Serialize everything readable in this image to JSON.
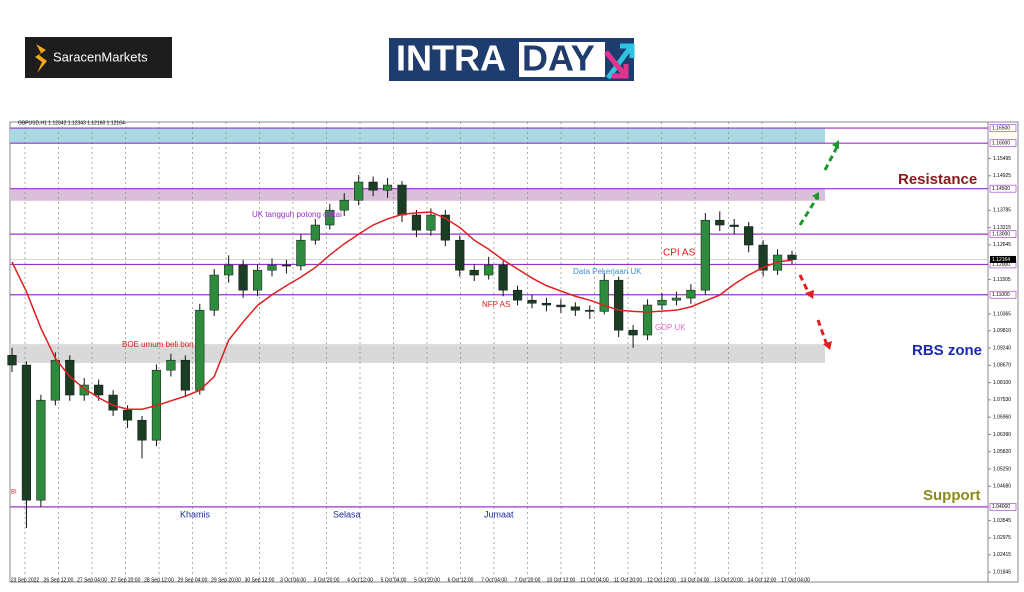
{
  "brand": "SaracenMarkets",
  "banner": {
    "left": "INTRA",
    "right": "DAY"
  },
  "chart_data": {
    "type": "candlestick",
    "title": "GBPUSD,H1 1.12342 1.12343 1.12160 1.12164",
    "ylim": [
      1.0152,
      1.167
    ],
    "yticks": [
      {
        "value": 1.15495,
        "label": "1.15495"
      },
      {
        "value": 1.14925,
        "label": "1.14925"
      },
      {
        "value": 1.13785,
        "label": "1.13785"
      },
      {
        "value": 1.13215,
        "label": "1.13215"
      },
      {
        "value": 1.12645,
        "label": "1.12645"
      },
      {
        "value": 1.11505,
        "label": "1.11505"
      },
      {
        "value": 1.10365,
        "label": "1.10365"
      },
      {
        "value": 1.0981,
        "label": "1.09810"
      },
      {
        "value": 1.0924,
        "label": "1.09240"
      },
      {
        "value": 1.0867,
        "label": "1.08670"
      },
      {
        "value": 1.081,
        "label": "1.08100"
      },
      {
        "value": 1.0753,
        "label": "1.07530"
      },
      {
        "value": 1.0696,
        "label": "1.06960"
      },
      {
        "value": 1.0639,
        "label": "1.06390"
      },
      {
        "value": 1.0582,
        "label": "1.05820"
      },
      {
        "value": 1.0525,
        "label": "1.05250"
      },
      {
        "value": 1.0468,
        "label": "1.04680"
      },
      {
        "value": 1.03545,
        "label": "1.03545"
      },
      {
        "value": 1.02975,
        "label": "1.02975"
      },
      {
        "value": 1.02415,
        "label": "1.02415"
      },
      {
        "value": 1.01845,
        "label": "1.01845"
      }
    ],
    "time_labels": [
      "23 Sep 2022",
      "26 Sep 12:00",
      "27 Sep 04:00",
      "27 Sep 20:00",
      "28 Sep 12:00",
      "29 Sep 04:00",
      "29 Sep 20:00",
      "30 Sep 12:00",
      "3 Oct 04:00",
      "3 Oct 20:00",
      "4 Oct 12:00",
      "5 Oct 04:00",
      "5 Oct 20:00",
      "6 Oct 12:00",
      "7 Oct 04:00",
      "7 Oct 20:00",
      "10 Oct 12:00",
      "11 Oct 04:00",
      "11 Oct 20:00",
      "12 Oct 12:00",
      "13 Oct 04:00",
      "13 Oct 20:00",
      "14 Oct 12:00",
      "17 Oct 04:00"
    ],
    "up_color": "#2e8b3e",
    "down_color": "#1b3d24",
    "ma_color": "#e02020",
    "level_color": "#9b30c8",
    "open": [
      1.09,
      1.0868,
      1.0422,
      1.0752,
      1.0884,
      1.0769,
      1.0802,
      1.0769,
      1.0719,
      1.0686,
      1.062,
      1.0851,
      1.0884,
      1.0785,
      1.1049,
      1.1165,
      1.1198,
      1.1115,
      1.1181,
      1.1198,
      1.1195,
      1.128,
      1.133,
      1.1379,
      1.1412,
      1.1472,
      1.1445,
      1.1462,
      1.1363,
      1.1313,
      1.1363,
      1.128,
      1.1181,
      1.1165,
      1.1198,
      1.1115,
      1.1082,
      1.1072,
      1.1066,
      1.106,
      1.1049,
      1.1045,
      1.1148,
      1.0983,
      1.0967,
      1.1066,
      1.1082,
      1.1089,
      1.1115,
      1.1346,
      1.133,
      1.1325,
      1.1264,
      1.1181,
      1.1231
    ],
    "high": [
      1.0925,
      1.088,
      1.077,
      1.091,
      1.09,
      1.0825,
      1.082,
      1.0785,
      1.0735,
      1.07,
      1.087,
      1.0905,
      1.09,
      1.107,
      1.1185,
      1.123,
      1.1215,
      1.12,
      1.122,
      1.1215,
      1.13,
      1.135,
      1.14,
      1.1435,
      1.1495,
      1.149,
      1.1485,
      1.1475,
      1.138,
      1.1385,
      1.138,
      1.1295,
      1.12,
      1.1225,
      1.1215,
      1.113,
      1.11,
      1.109,
      1.1085,
      1.1075,
      1.1065,
      1.117,
      1.116,
      1.1,
      1.1085,
      1.1105,
      1.111,
      1.1135,
      1.137,
      1.1375,
      1.135,
      1.134,
      1.128,
      1.125,
      1.1245
    ],
    "low": [
      1.0845,
      1.033,
      1.04,
      1.0735,
      1.075,
      1.075,
      1.075,
      1.07,
      1.066,
      1.056,
      1.06,
      1.083,
      1.0765,
      1.077,
      1.103,
      1.114,
      1.109,
      1.1095,
      1.116,
      1.117,
      1.118,
      1.1265,
      1.1315,
      1.136,
      1.1395,
      1.1425,
      1.142,
      1.134,
      1.129,
      1.1295,
      1.126,
      1.116,
      1.1145,
      1.115,
      1.1095,
      1.1065,
      1.1055,
      1.1045,
      1.104,
      1.103,
      1.102,
      1.1035,
      1.096,
      1.0925,
      1.095,
      1.105,
      1.1065,
      1.107,
      1.11,
      1.131,
      1.13,
      1.124,
      1.116,
      1.1165,
      1.12
    ],
    "close": [
      1.0868,
      1.0422,
      1.0752,
      1.0884,
      1.0769,
      1.0802,
      1.0769,
      1.0719,
      1.0686,
      1.062,
      1.0851,
      1.0884,
      1.0785,
      1.1049,
      1.1165,
      1.1198,
      1.1115,
      1.1181,
      1.1198,
      1.1195,
      1.128,
      1.133,
      1.1379,
      1.1412,
      1.1472,
      1.1445,
      1.1462,
      1.1363,
      1.1313,
      1.1363,
      1.128,
      1.1181,
      1.1165,
      1.1198,
      1.1115,
      1.1082,
      1.1072,
      1.1066,
      1.106,
      1.1049,
      1.1045,
      1.1148,
      1.0983,
      1.0967,
      1.1066,
      1.1082,
      1.1089,
      1.1115,
      1.1346,
      1.133,
      1.1325,
      1.1264,
      1.1181,
      1.1231,
      1.1216
    ],
    "ma": [
      1.1208,
      1.111,
      1.099,
      1.089,
      1.083,
      1.079,
      1.076,
      1.0735,
      1.0722,
      1.0722,
      1.0734,
      1.075,
      1.0765,
      1.0785,
      1.083,
      1.095,
      1.101,
      1.1065,
      1.11,
      1.113,
      1.1158,
      1.119,
      1.1231,
      1.1268,
      1.13,
      1.133,
      1.135,
      1.1365,
      1.137,
      1.1373,
      1.1352,
      1.1322,
      1.128,
      1.125,
      1.1215,
      1.1185,
      1.1155,
      1.113,
      1.1112,
      1.1095,
      1.1082,
      1.1065,
      1.1049,
      1.1045,
      1.1043,
      1.1046,
      1.1049,
      1.106,
      1.108,
      1.1099,
      1.1135,
      1.1165,
      1.119,
      1.1208,
      1.1214
    ],
    "levels": [
      {
        "value": 1.165,
        "label": "1.16500"
      },
      {
        "value": 1.16,
        "label": "1.16000"
      },
      {
        "value": 1.145,
        "label": "1.14500"
      },
      {
        "value": 1.13,
        "label": "1.13000"
      },
      {
        "value": 1.12,
        "label": "1.12000"
      },
      {
        "value": 1.11,
        "label": "1.11000"
      },
      {
        "value": 1.04,
        "label": "1.04000"
      }
    ],
    "current": {
      "value": 1.12164,
      "label": "1.12164"
    },
    "zones": [
      {
        "from": 1.16,
        "to": 1.165,
        "color": "#a9d9e3"
      },
      {
        "from": 1.141,
        "to": 1.145,
        "color": "#d9bfd9"
      },
      {
        "from": 1.0875,
        "to": 1.0937,
        "color": "#d9d9d9"
      }
    ],
    "annotations": [
      "UK tangguh potong cukai",
      "BOE umum beli bon",
      "NFP AS",
      "Data Pekerjaan UK",
      "CPI AS",
      "GDP UK",
      "Khamis",
      "Selasa",
      "Jumaat",
      "BI"
    ],
    "zone_labels": [
      "Resistance",
      "RBS zone",
      "Support"
    ]
  }
}
